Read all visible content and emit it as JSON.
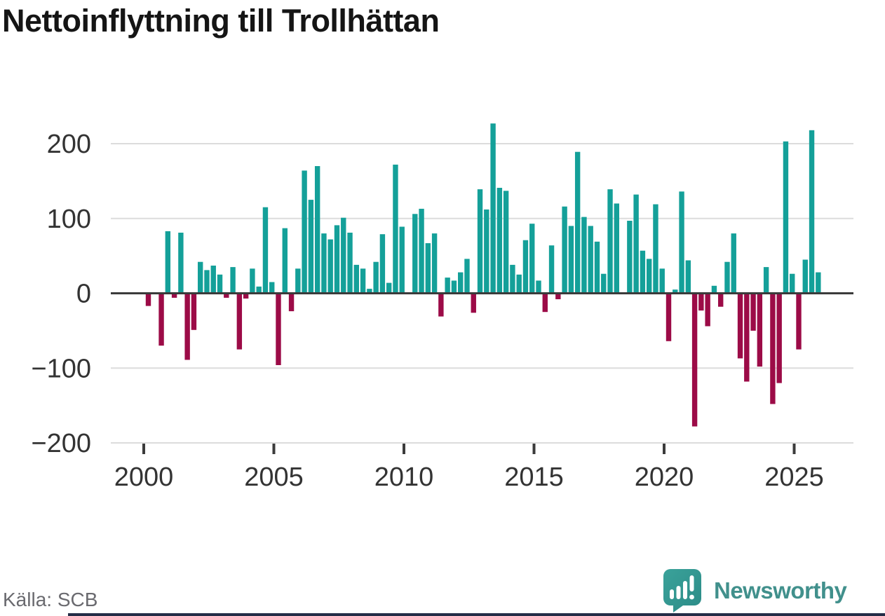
{
  "title": "Nettoinflyttning till Trollhättan",
  "source": "Källa: SCB",
  "branding": {
    "name": "Newsworthy",
    "icon": "speech-bubble-bar-chart-logo"
  },
  "colors": {
    "positive_bar": "#14a099",
    "negative_bar": "#9c0b47",
    "grid": "#dcdcdc",
    "zero_line": "#3b3b3b",
    "axis_text": "#333333",
    "title_text": "#151515",
    "source_text": "#6a6a6f",
    "brand_teal": "#41908c",
    "logo_fill": "#2f928d",
    "bottom_strip": "#242d47"
  },
  "chart_data": {
    "type": "bar",
    "title": "Nettoinflyttning till Trollhättan",
    "xlabel": "",
    "ylabel": "",
    "period": "quarterly",
    "start_period": "2000 Q1",
    "end_period": "2025 Q4",
    "x_tick_labels": [
      "2000",
      "2005",
      "2010",
      "2015",
      "2020",
      "2025"
    ],
    "y_ticks": [
      200,
      100,
      0,
      -100,
      -200
    ],
    "y_tick_labels": [
      "200",
      "100",
      "0",
      "−100",
      "−200"
    ],
    "ylim": [
      -230,
      245
    ],
    "grid": true,
    "legend": false,
    "series": [
      {
        "name": "Nettoinflyttning",
        "start_year": 2000,
        "values": [
          -17,
          0,
          -70,
          83,
          -6,
          81,
          -89,
          -49,
          42,
          31,
          37,
          25,
          -6,
          35,
          -75,
          -7,
          33,
          9,
          115,
          15,
          -96,
          87,
          -24,
          33,
          164,
          125,
          170,
          80,
          72,
          91,
          101,
          81,
          38,
          33,
          6,
          42,
          79,
          14,
          172,
          89,
          0,
          106,
          113,
          67,
          80,
          -31,
          21,
          17,
          28,
          46,
          -26,
          139,
          112,
          227,
          141,
          137,
          38,
          25,
          71,
          93,
          17,
          -25,
          64,
          -8,
          116,
          90,
          189,
          102,
          90,
          69,
          26,
          139,
          120,
          0,
          97,
          132,
          57,
          46,
          119,
          33,
          -64,
          5,
          136,
          44,
          -178,
          -23,
          -44,
          10,
          -18,
          42,
          80,
          -87,
          -118,
          -50,
          -98,
          35,
          -148,
          -120,
          203,
          26,
          -75,
          45,
          218,
          28
        ]
      }
    ]
  }
}
